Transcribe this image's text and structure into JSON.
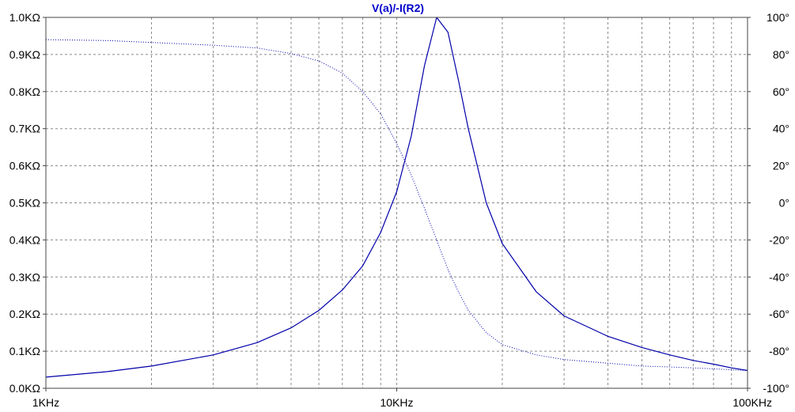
{
  "chart_data": {
    "type": "line",
    "title": "V(a)/-I(R2)",
    "x_scale": "log",
    "xlim": [
      1000,
      100000
    ],
    "x_ticks": [
      {
        "value": 1000,
        "label": "1KHz"
      },
      {
        "value": 10000,
        "label": "10KHz"
      },
      {
        "value": 100000,
        "label": "100KHz"
      }
    ],
    "y_left": {
      "lim": [
        0,
        1000
      ],
      "unit": "Ω",
      "ticks": [
        {
          "value": 0,
          "label": "0.0KΩ"
        },
        {
          "value": 100,
          "label": "0.1KΩ"
        },
        {
          "value": 200,
          "label": "0.2KΩ"
        },
        {
          "value": 300,
          "label": "0.3KΩ"
        },
        {
          "value": 400,
          "label": "0.4KΩ"
        },
        {
          "value": 500,
          "label": "0.5KΩ"
        },
        {
          "value": 600,
          "label": "0.6KΩ"
        },
        {
          "value": 700,
          "label": "0.7KΩ"
        },
        {
          "value": 800,
          "label": "0.8KΩ"
        },
        {
          "value": 900,
          "label": "0.9KΩ"
        },
        {
          "value": 1000,
          "label": "1.0KΩ"
        }
      ]
    },
    "y_right": {
      "lim": [
        -100,
        100
      ],
      "unit": "°",
      "ticks": [
        {
          "value": 100,
          "label": "100°"
        },
        {
          "value": 80,
          "label": "80°"
        },
        {
          "value": 60,
          "label": "60°"
        },
        {
          "value": 40,
          "label": "40°"
        },
        {
          "value": 20,
          "label": "20°"
        },
        {
          "value": 0,
          "label": "0°"
        },
        {
          "value": -20,
          "label": "-20°"
        },
        {
          "value": -40,
          "label": "-40°"
        },
        {
          "value": -60,
          "label": "-60°"
        },
        {
          "value": -80,
          "label": "-80°"
        },
        {
          "value": -100,
          "label": "-100°"
        }
      ]
    },
    "grid": true,
    "series": [
      {
        "style": "solid",
        "axis": "left",
        "color": "#0000aa",
        "x": [
          1000,
          1500,
          2000,
          3000,
          4000,
          5000,
          6000,
          7000,
          8000,
          9000,
          10000,
          11000,
          12000,
          13000,
          14000,
          15000,
          16000,
          18000,
          20000,
          25000,
          30000,
          40000,
          50000,
          60000,
          70000,
          80000,
          90000,
          100000
        ],
        "y": [
          30,
          45,
          60,
          90,
          123,
          163,
          210,
          265,
          330,
          420,
          530,
          680,
          870,
          1000,
          960,
          830,
          700,
          500,
          390,
          260,
          195,
          140,
          110,
          90,
          75,
          65,
          55,
          48
        ]
      },
      {
        "style": "dotted",
        "axis": "right",
        "color": "#0000aa",
        "x": [
          1000,
          1500,
          2000,
          3000,
          4000,
          5000,
          6000,
          7000,
          8000,
          9000,
          10000,
          11000,
          12000,
          13000,
          14000,
          15000,
          16000,
          18000,
          20000,
          25000,
          30000,
          40000,
          50000,
          60000,
          70000,
          80000,
          90000,
          100000
        ],
        "y": [
          88,
          87.5,
          86.5,
          85,
          83.5,
          80.5,
          76.5,
          70,
          60,
          48,
          32,
          15,
          -3,
          -20,
          -36,
          -48,
          -58,
          -70,
          -76.5,
          -82,
          -84.5,
          -86.5,
          -88,
          -88.5,
          -89,
          -89.5,
          -90,
          -90.5
        ]
      }
    ]
  }
}
